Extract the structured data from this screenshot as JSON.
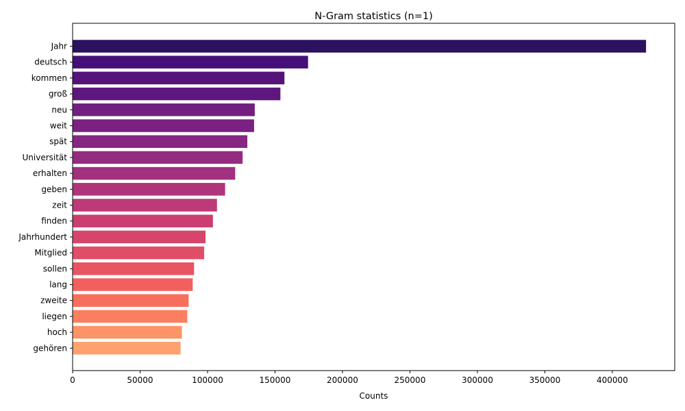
{
  "chart_data": {
    "type": "bar",
    "orientation": "horizontal",
    "title": "N-Gram statistics (n=1)",
    "xlabel": "Counts",
    "ylabel": "",
    "xlim": [
      0,
      446250
    ],
    "xticks": [
      0,
      50000,
      100000,
      150000,
      200000,
      250000,
      300000,
      350000,
      400000
    ],
    "grid": false,
    "categories": [
      "Jahr",
      "deutsch",
      "kommen",
      "groß",
      "neu",
      "weit",
      "spät",
      "Universität",
      "erhalten",
      "geben",
      "zeit",
      "finden",
      "Jahrhundert",
      "Mitglied",
      "sollen",
      "lang",
      "zweite",
      "liegen",
      "hoch",
      "gehören"
    ],
    "values": [
      425000,
      174500,
      157000,
      154000,
      135000,
      134500,
      129500,
      126000,
      120500,
      113000,
      107000,
      104000,
      98500,
      97500,
      90000,
      89000,
      86000,
      85000,
      81000,
      80000
    ],
    "colors": [
      "#2c115f",
      "#451077",
      "#541479",
      "#5e177f",
      "#721f81",
      "#7a2181",
      "#862781",
      "#942c80",
      "#a1307e",
      "#ae347b",
      "#bd3977",
      "#cb3e71",
      "#d6456c",
      "#e14d67",
      "#e95462",
      "#f1605d",
      "#f76f5c",
      "#fa7f5e",
      "#fd9467",
      "#fea16e"
    ]
  }
}
